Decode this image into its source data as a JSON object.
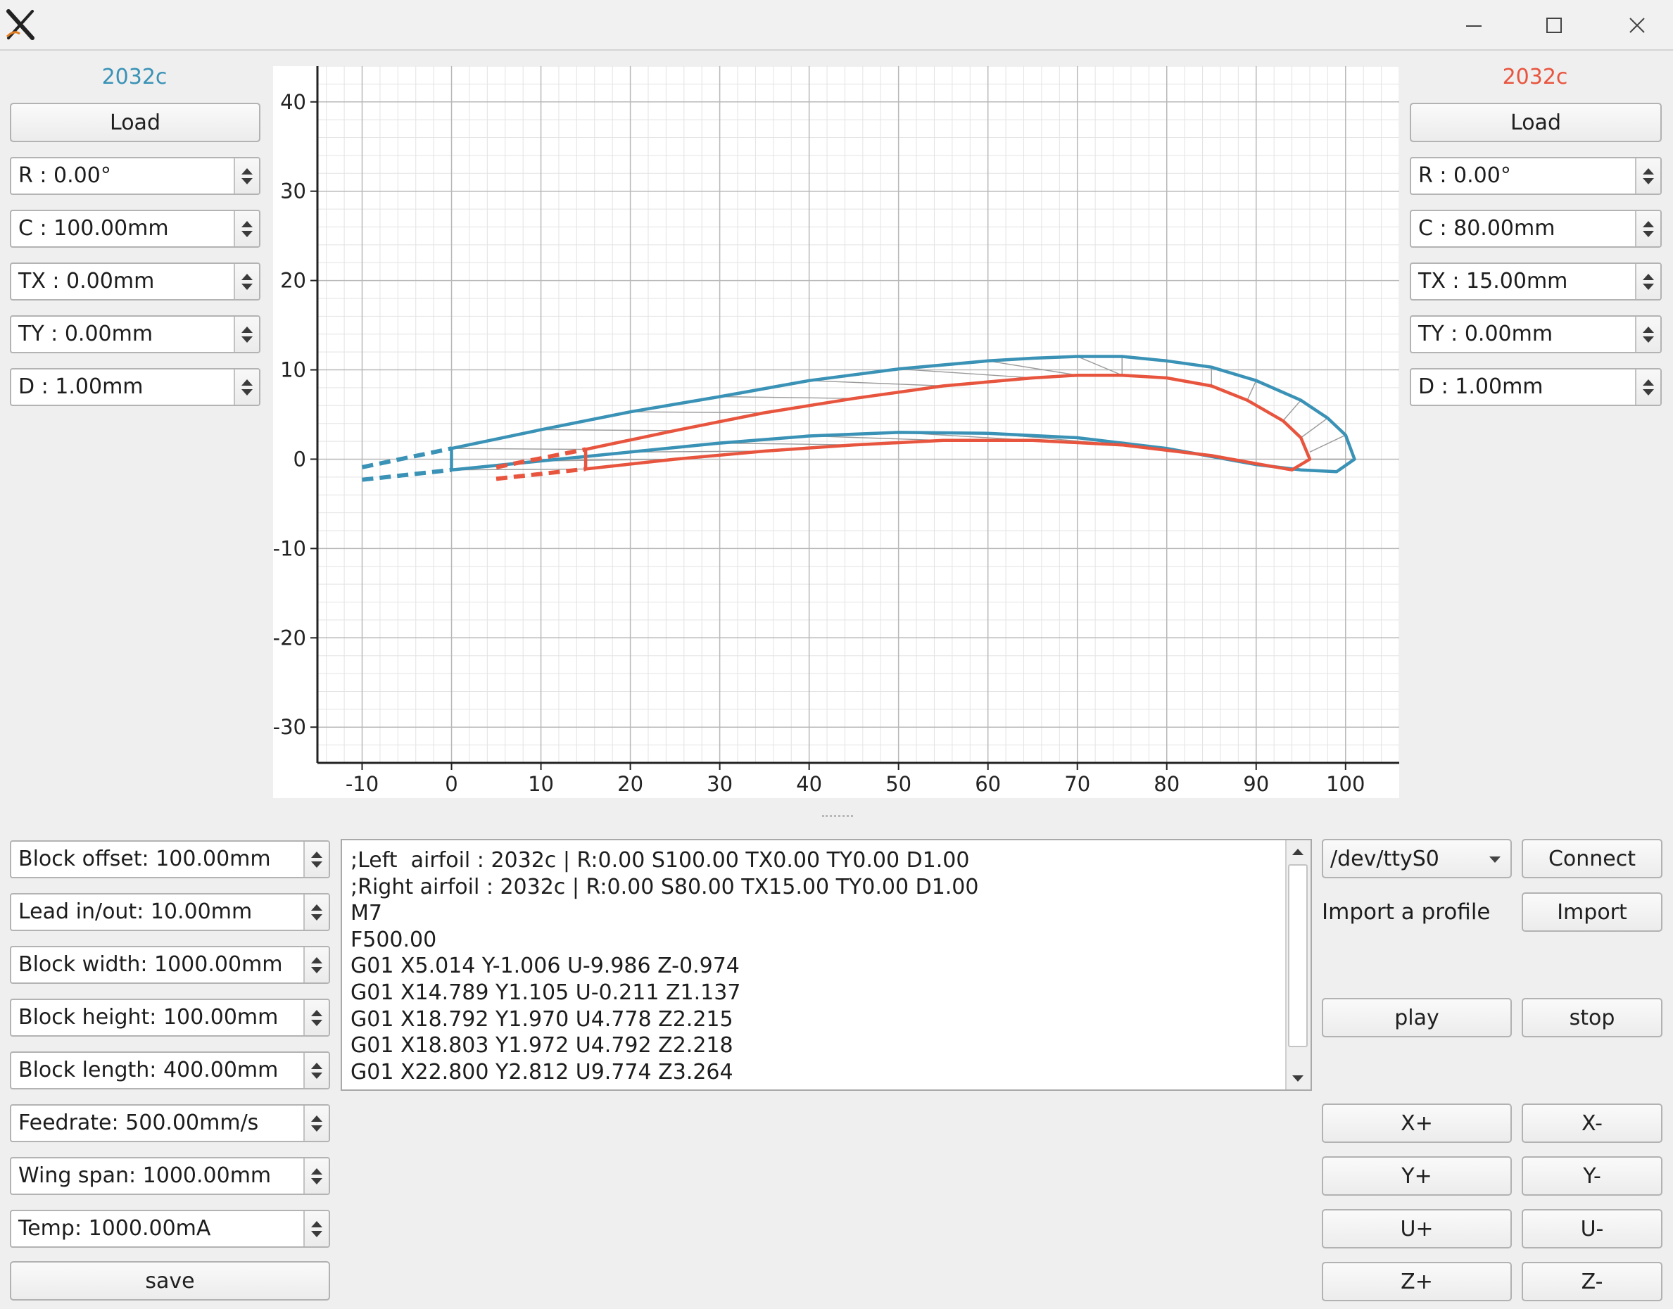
{
  "window": {
    "controls": [
      "minimize",
      "maximize",
      "close"
    ]
  },
  "left_panel": {
    "airfoil_name": "2032c",
    "load_label": "Load",
    "fields": [
      "R : 0.00°",
      "C : 100.00mm",
      "TX : 0.00mm",
      "TY : 0.00mm",
      "D : 1.00mm"
    ]
  },
  "right_panel": {
    "airfoil_name": "2032c",
    "load_label": "Load",
    "fields": [
      "R : 0.00°",
      "C : 80.00mm",
      "TX : 15.00mm",
      "TY : 0.00mm",
      "D : 1.00mm"
    ]
  },
  "colors": {
    "left": "#3a92b6",
    "right": "#e8553f",
    "grid_major": "#b8b8b8",
    "grid_minor": "#e3e3e3"
  },
  "chart_data": {
    "type": "line",
    "title": "",
    "xlabel": "",
    "ylabel": "",
    "xlim": [
      -15,
      106
    ],
    "ylim": [
      -34,
      44
    ],
    "xticks": [
      -10,
      0,
      10,
      20,
      30,
      40,
      50,
      60,
      70,
      80,
      90,
      100
    ],
    "yticks": [
      -30,
      -20,
      -10,
      0,
      10,
      20,
      30,
      40
    ],
    "grid": true,
    "series": [
      {
        "color": "#3a92b6",
        "closed": true,
        "points": [
          [
            0,
            -1.2
          ],
          [
            10,
            -0.2
          ],
          [
            20,
            0.8
          ],
          [
            30,
            1.8
          ],
          [
            40,
            2.6
          ],
          [
            50,
            3
          ],
          [
            60,
            2.9
          ],
          [
            70,
            2.4
          ],
          [
            80,
            1.2
          ],
          [
            90,
            -0.6
          ],
          [
            95,
            -1.2
          ],
          [
            99,
            -1.4
          ],
          [
            101,
            0
          ],
          [
            100,
            2.7
          ],
          [
            98,
            4.6
          ],
          [
            95,
            6.6
          ],
          [
            90,
            8.8
          ],
          [
            85,
            10.3
          ],
          [
            80,
            11
          ],
          [
            75,
            11.5
          ],
          [
            70,
            11.5
          ],
          [
            65,
            11.3
          ],
          [
            60,
            11
          ],
          [
            50,
            10.1
          ],
          [
            40,
            8.8
          ],
          [
            30,
            7
          ],
          [
            20,
            5.3
          ],
          [
            10,
            3.3
          ],
          [
            0,
            1.2
          ]
        ]
      },
      {
        "color": "#e8553f",
        "closed": true,
        "points": [
          [
            15,
            -1.1
          ],
          [
            25,
            0.0
          ],
          [
            35,
            0.9
          ],
          [
            45,
            1.6
          ],
          [
            55,
            2.1
          ],
          [
            65,
            2.1
          ],
          [
            75,
            1.6
          ],
          [
            85,
            0.4
          ],
          [
            90,
            -0.5
          ],
          [
            94,
            -1.2
          ],
          [
            96,
            0
          ],
          [
            95,
            2.4
          ],
          [
            93,
            4.3
          ],
          [
            89,
            6.6
          ],
          [
            85,
            8.2
          ],
          [
            80,
            9.1
          ],
          [
            75,
            9.4
          ],
          [
            70,
            9.4
          ],
          [
            65,
            9.1
          ],
          [
            55,
            8.2
          ],
          [
            45,
            6.8
          ],
          [
            35,
            5.2
          ],
          [
            25,
            3.2
          ],
          [
            15,
            1.1
          ]
        ]
      },
      {
        "color": "#3a92b6",
        "dashed": true,
        "points": [
          [
            -10,
            -0.9
          ],
          [
            0,
            1.2
          ]
        ]
      },
      {
        "color": "#3a92b6",
        "dashed": true,
        "points": [
          [
            -10,
            -2.3
          ],
          [
            0,
            -1.2
          ]
        ]
      },
      {
        "color": "#e8553f",
        "dashed": true,
        "points": [
          [
            5,
            -0.9
          ],
          [
            15,
            1.1
          ]
        ]
      },
      {
        "color": "#e8553f",
        "dashed": true,
        "points": [
          [
            5,
            -2.2
          ],
          [
            15,
            -1.1
          ]
        ]
      }
    ],
    "connectors": [
      [
        [
          0,
          1.2
        ],
        [
          15,
          1.1
        ]
      ],
      [
        [
          10,
          3.3
        ],
        [
          25,
          3.2
        ]
      ],
      [
        [
          20,
          5.3
        ],
        [
          35,
          5.2
        ]
      ],
      [
        [
          30,
          7
        ],
        [
          45,
          6.8
        ]
      ],
      [
        [
          40,
          8.8
        ],
        [
          55,
          8.2
        ]
      ],
      [
        [
          50,
          10.1
        ],
        [
          65,
          9.1
        ]
      ],
      [
        [
          60,
          11
        ],
        [
          70,
          9.4
        ]
      ],
      [
        [
          70,
          11.5
        ],
        [
          75,
          9.4
        ]
      ],
      [
        [
          75,
          11.5
        ],
        [
          75,
          9.4
        ]
      ],
      [
        [
          80,
          11
        ],
        [
          80,
          9.1
        ]
      ],
      [
        [
          85,
          10.3
        ],
        [
          85,
          8.2
        ]
      ],
      [
        [
          90,
          8.8
        ],
        [
          89,
          6.6
        ]
      ],
      [
        [
          95,
          6.6
        ],
        [
          93,
          4.3
        ]
      ],
      [
        [
          98,
          4.6
        ],
        [
          95,
          2.4
        ]
      ],
      [
        [
          100,
          2.7
        ],
        [
          96,
          0.8
        ]
      ],
      [
        [
          101,
          0
        ],
        [
          96,
          0
        ]
      ],
      [
        [
          0,
          -1.2
        ],
        [
          15,
          -1.1
        ]
      ],
      [
        [
          10,
          -0.2
        ],
        [
          25,
          0
        ]
      ],
      [
        [
          20,
          0.8
        ],
        [
          35,
          0.9
        ]
      ],
      [
        [
          30,
          1.8
        ],
        [
          45,
          1.6
        ]
      ],
      [
        [
          40,
          2.6
        ],
        [
          55,
          2.1
        ]
      ],
      [
        [
          50,
          3
        ],
        [
          65,
          2.1
        ]
      ],
      [
        [
          60,
          2.9
        ],
        [
          75,
          1.6
        ]
      ],
      [
        [
          70,
          2.4
        ],
        [
          85,
          0.4
        ]
      ]
    ]
  },
  "machine_fields": [
    "Block offset: 100.00mm",
    "Lead in/out: 10.00mm",
    "Block width: 1000.00mm",
    "Block height: 100.00mm",
    "Block length: 400.00mm",
    "Feedrate: 500.00mm/s",
    "Wing span: 1000.00mm",
    "Temp: 1000.00mA"
  ],
  "save_label": "save",
  "gcode_lines": [
    ";Left  airfoil : 2032c | R:0.00 S100.00 TX0.00 TY0.00 D1.00",
    ";Right airfoil : 2032c | R:0.00 S80.00 TX15.00 TY0.00 D1.00",
    "M7",
    "F500.00",
    "G01 X5.014 Y-1.006 U-9.986 Z-0.974",
    "G01 X14.789 Y1.105 U-0.211 Z1.137",
    "G01 X18.792 Y1.970 U4.778 Z2.215",
    "G01 X18.803 Y1.972 U4.792 Z2.218",
    "G01 X22.800 Y2.812 U9.774 Z3.264"
  ],
  "controls": {
    "port": "/dev/ttyS0",
    "connect_label": "Connect",
    "import_text": "Import a profile",
    "import_label": "Import",
    "play_label": "play",
    "stop_label": "stop",
    "jog": [
      [
        "X+",
        "X-"
      ],
      [
        "Y+",
        "Y-"
      ],
      [
        "U+",
        "U-"
      ],
      [
        "Z+",
        "Z-"
      ]
    ]
  }
}
